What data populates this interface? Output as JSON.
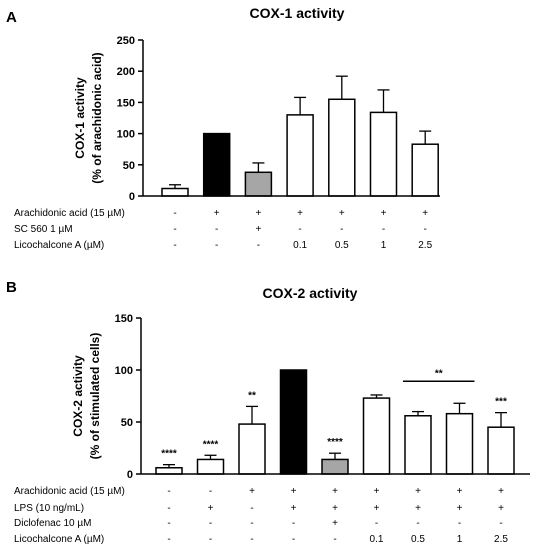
{
  "chart_data": [
    {
      "type": "bar",
      "panel": "A",
      "title": "COX-1 activity",
      "ylabel": [
        "COX-1 activity",
        "(% of arachidonic acid)"
      ],
      "ylim": [
        0,
        250
      ],
      "yticks": [
        0,
        50,
        100,
        150,
        200,
        250
      ],
      "values": [
        12,
        100,
        38,
        130,
        155,
        134,
        83
      ],
      "errors": [
        6,
        0,
        15,
        28,
        37,
        36,
        21
      ],
      "bar_colors": [
        "#ffffff",
        "#000000",
        "#a6a6a6",
        "#ffffff",
        "#ffffff",
        "#ffffff",
        "#ffffff"
      ],
      "significance": [
        "",
        "",
        "",
        "",
        "",
        "",
        ""
      ],
      "conditions": [
        {
          "label": "Arachidonic acid (15 µM)",
          "marks": [
            "-",
            "+",
            "+",
            "+",
            "+",
            "+",
            "+"
          ]
        },
        {
          "label": "SC 560 1 µM",
          "marks": [
            "-",
            "-",
            "+",
            "-",
            "-",
            "-",
            "-"
          ]
        },
        {
          "label": "Licochalcone A (µM)",
          "marks": [
            "-",
            "-",
            "-",
            "0.1",
            "0.5",
            "1",
            "2.5"
          ]
        }
      ]
    },
    {
      "type": "bar",
      "panel": "B",
      "title": "COX-2 activity",
      "ylabel": [
        "COX-2 activity",
        "(% of stimulated cells)"
      ],
      "ylim": [
        0,
        150
      ],
      "yticks": [
        0,
        50,
        100,
        150
      ],
      "values": [
        6,
        14,
        48,
        100,
        14,
        73,
        56,
        58,
        45
      ],
      "errors": [
        3,
        4,
        17,
        0,
        6,
        3,
        4,
        10,
        14
      ],
      "bar_colors": [
        "#ffffff",
        "#ffffff",
        "#ffffff",
        "#000000",
        "#a6a6a6",
        "#ffffff",
        "#ffffff",
        "#ffffff",
        "#ffffff"
      ],
      "significance": [
        "****",
        "****",
        "**",
        "",
        "****",
        "",
        "",
        "",
        "***"
      ],
      "bracket": {
        "from": 6,
        "to": 7,
        "label": "**"
      },
      "conditions": [
        {
          "label": "Arachidonic acid (15 µM)",
          "marks": [
            "-",
            "-",
            "+",
            "+",
            "+",
            "+",
            "+",
            "+",
            "+"
          ]
        },
        {
          "label": "LPS (10 ng/mL)",
          "marks": [
            "-",
            "+",
            "-",
            "+",
            "+",
            "+",
            "+",
            "+",
            "+"
          ]
        },
        {
          "label": "Diclofenac 10 µM",
          "marks": [
            "-",
            "-",
            "-",
            "-",
            "+",
            "-",
            "-",
            "-",
            "-"
          ]
        },
        {
          "label": "Licochalcone A (µM)",
          "marks": [
            "-",
            "-",
            "-",
            "-",
            "-",
            "0.1",
            "0.5",
            "1",
            "2.5"
          ]
        }
      ]
    }
  ]
}
